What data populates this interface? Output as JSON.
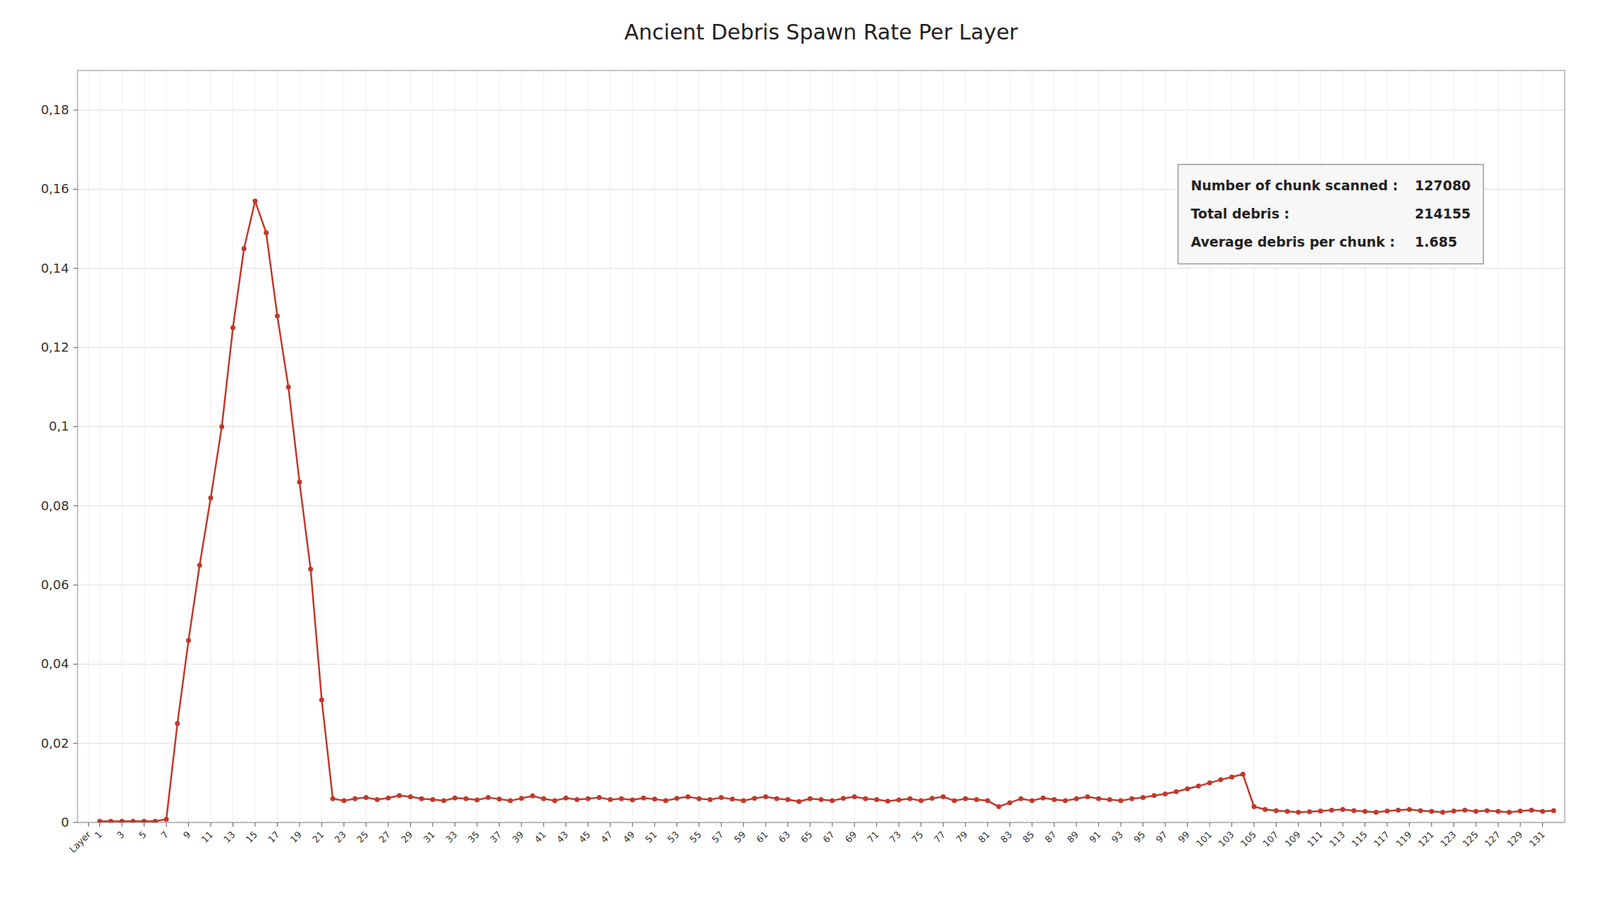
{
  "chart_data": {
    "type": "line",
    "title": "Ancient Debris Spawn Rate Per Layer",
    "color": "#c0392b",
    "marker": "circle",
    "line_style": "solid",
    "grid": true,
    "x": [
      1,
      2,
      3,
      4,
      5,
      6,
      7,
      8,
      9,
      10,
      11,
      12,
      13,
      14,
      15,
      16,
      17,
      18,
      19,
      20,
      21,
      22,
      23,
      24,
      25,
      26,
      27,
      28,
      29,
      30,
      31,
      32,
      33,
      34,
      35,
      36,
      37,
      38,
      39,
      40,
      41,
      42,
      43,
      44,
      45,
      46,
      47,
      48,
      49,
      50,
      51,
      52,
      53,
      54,
      55,
      56,
      57,
      58,
      59,
      60,
      61,
      62,
      63,
      64,
      65,
      66,
      67,
      68,
      69,
      70,
      71,
      72,
      73,
      74,
      75,
      76,
      77,
      78,
      79,
      80,
      81,
      82,
      83,
      84,
      85,
      86,
      87,
      88,
      89,
      90,
      91,
      92,
      93,
      94,
      95,
      96,
      97,
      98,
      99,
      100,
      101,
      102,
      103,
      104,
      105,
      106,
      107,
      108,
      109,
      110,
      111,
      112,
      113,
      114,
      115,
      116,
      117,
      118,
      119,
      120,
      121,
      122,
      123,
      124,
      125,
      126,
      127,
      128,
      129,
      130,
      131,
      132
    ],
    "values": [
      0.0003,
      0.0003,
      0.0003,
      0.0003,
      0.0003,
      0.0003,
      0.0008,
      0.025,
      0.046,
      0.065,
      0.082,
      0.1,
      0.125,
      0.145,
      0.157,
      0.149,
      0.128,
      0.11,
      0.086,
      0.064,
      0.031,
      0.006,
      0.0055,
      0.006,
      0.0063,
      0.0058,
      0.0062,
      0.0068,
      0.0065,
      0.006,
      0.0058,
      0.0055,
      0.0062,
      0.006,
      0.0057,
      0.0063,
      0.0059,
      0.0055,
      0.0061,
      0.0067,
      0.006,
      0.0055,
      0.0062,
      0.0058,
      0.006,
      0.0063,
      0.0058,
      0.006,
      0.0057,
      0.0062,
      0.0059,
      0.0055,
      0.0061,
      0.0065,
      0.006,
      0.0058,
      0.0063,
      0.0059,
      0.0055,
      0.0061,
      0.0065,
      0.006,
      0.0058,
      0.0053,
      0.006,
      0.0058,
      0.0055,
      0.0061,
      0.0065,
      0.006,
      0.0058,
      0.0054,
      0.0057,
      0.006,
      0.0055,
      0.0061,
      0.0065,
      0.0055,
      0.006,
      0.0058,
      0.0055,
      0.004,
      0.005,
      0.006,
      0.0055,
      0.0062,
      0.0058,
      0.0055,
      0.006,
      0.0065,
      0.006,
      0.0058,
      0.0055,
      0.006,
      0.0063,
      0.0068,
      0.0072,
      0.0078,
      0.0085,
      0.0092,
      0.01,
      0.0108,
      0.0115,
      0.0122,
      0.004,
      0.0033,
      0.003,
      0.0028,
      0.0026,
      0.0027,
      0.0029,
      0.0031,
      0.0033,
      0.003,
      0.0028,
      0.0026,
      0.0029,
      0.0031,
      0.0033,
      0.003,
      0.0028,
      0.0026,
      0.0029,
      0.0031,
      0.0028,
      0.003,
      0.0028,
      0.0026,
      0.0029,
      0.0031,
      0.0028,
      0.003
    ],
    "xlim": [
      -1,
      133
    ],
    "xticks": [
      {
        "value": 0,
        "label": "Layer"
      },
      1,
      3,
      5,
      7,
      9,
      11,
      13,
      15,
      17,
      19,
      21,
      23,
      25,
      27,
      29,
      31,
      33,
      35,
      37,
      39,
      41,
      43,
      45,
      47,
      49,
      51,
      53,
      55,
      57,
      59,
      61,
      63,
      65,
      67,
      69,
      71,
      73,
      75,
      77,
      79,
      81,
      83,
      85,
      87,
      89,
      91,
      93,
      95,
      97,
      99,
      101,
      103,
      105,
      107,
      109,
      111,
      113,
      115,
      117,
      119,
      121,
      123,
      125,
      127,
      129,
      131
    ],
    "ylim": [
      0,
      0.19
    ],
    "yticks": [
      0,
      {
        "value": 0.02,
        "label": "0,02"
      },
      {
        "value": 0.04,
        "label": "0,04"
      },
      {
        "value": 0.06,
        "label": "0,06"
      },
      {
        "value": 0.08,
        "label": "0,08"
      },
      {
        "value": 0.1,
        "label": "0,1"
      },
      {
        "value": 0.12,
        "label": "0,12"
      },
      {
        "value": 0.14,
        "label": "0,14"
      },
      {
        "value": 0.16,
        "label": "0,16"
      },
      {
        "value": 0.18,
        "label": "0,18"
      }
    ],
    "annotations": [
      {
        "label": "Number of chunk scanned :",
        "value": "127080"
      },
      {
        "label": "Total debris :",
        "value": "214155"
      },
      {
        "label": "Average debris per chunk :",
        "value": "1.685"
      }
    ]
  }
}
